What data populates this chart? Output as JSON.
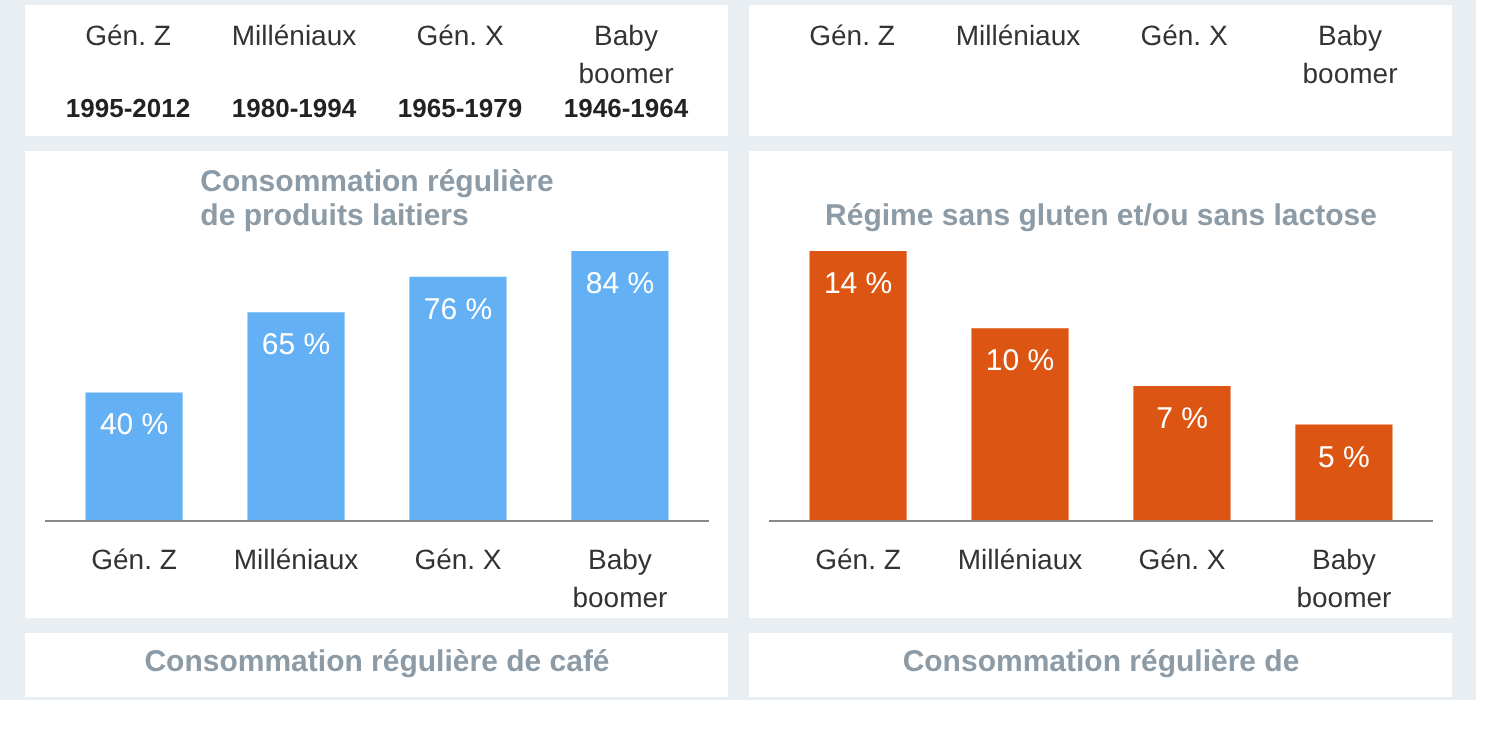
{
  "chart_data": [
    {
      "type": "other",
      "categories": [
        "Gén. Z",
        "Milléniaux",
        "Gén. X",
        "Baby boomer"
      ],
      "annotations": [
        "1995-2012",
        "1980-1994",
        "1965-1979",
        "1946-1964"
      ]
    },
    {
      "type": "other",
      "categories": [
        "Gén. Z",
        "Milléniaux",
        "Gén. X",
        "Baby boomer"
      ]
    },
    {
      "type": "bar",
      "title": "Consommation régulière de produits laitiers",
      "categories": [
        "Gén. Z",
        "Milléniaux",
        "Gén. X",
        "Baby boomer"
      ],
      "values": [
        40,
        65,
        76,
        84
      ],
      "color": "#64b0f4",
      "value_labels": [
        "40 %",
        "65 %",
        "76 %",
        "84 %"
      ]
    },
    {
      "type": "bar",
      "title": "Régime sans gluten et/ou sans lactose",
      "categories": [
        "Gén. Z",
        "Milléniaux",
        "Gén. X",
        "Baby boomer"
      ],
      "values": [
        14,
        10,
        7,
        5
      ],
      "color": "#dc5512",
      "value_labels": [
        "14 %",
        "10 %",
        "7 %",
        "5 %"
      ]
    },
    {
      "type": "other",
      "title": "Consommation régulière de café"
    },
    {
      "type": "other",
      "title": "Consommation régulière de"
    }
  ]
}
